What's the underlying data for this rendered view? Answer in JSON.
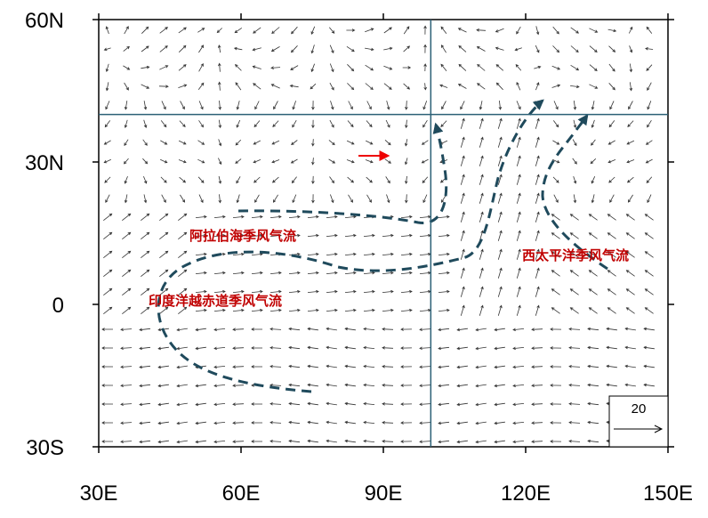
{
  "axes": {
    "xlim": [
      30,
      150
    ],
    "ylim": [
      -30,
      60
    ],
    "xticks": [
      {
        "value": 30,
        "label": "30E"
      },
      {
        "value": 60,
        "label": "60E"
      },
      {
        "value": 90,
        "label": "90E"
      },
      {
        "value": 120,
        "label": "120E"
      },
      {
        "value": 150,
        "label": "150E"
      }
    ],
    "yticks": [
      {
        "value": -30,
        "label": "30S"
      },
      {
        "value": 0,
        "label": "0"
      },
      {
        "value": 30,
        "label": "30N"
      },
      {
        "value": 60,
        "label": "60N"
      }
    ]
  },
  "reference_lines": {
    "lon": 100,
    "lat": 40
  },
  "annotations": [
    "阿拉伯海季风气流",
    "印度洋越赤道季风气流",
    "西太平洋季风气流"
  ],
  "reference_vector": {
    "label": "20"
  }
}
